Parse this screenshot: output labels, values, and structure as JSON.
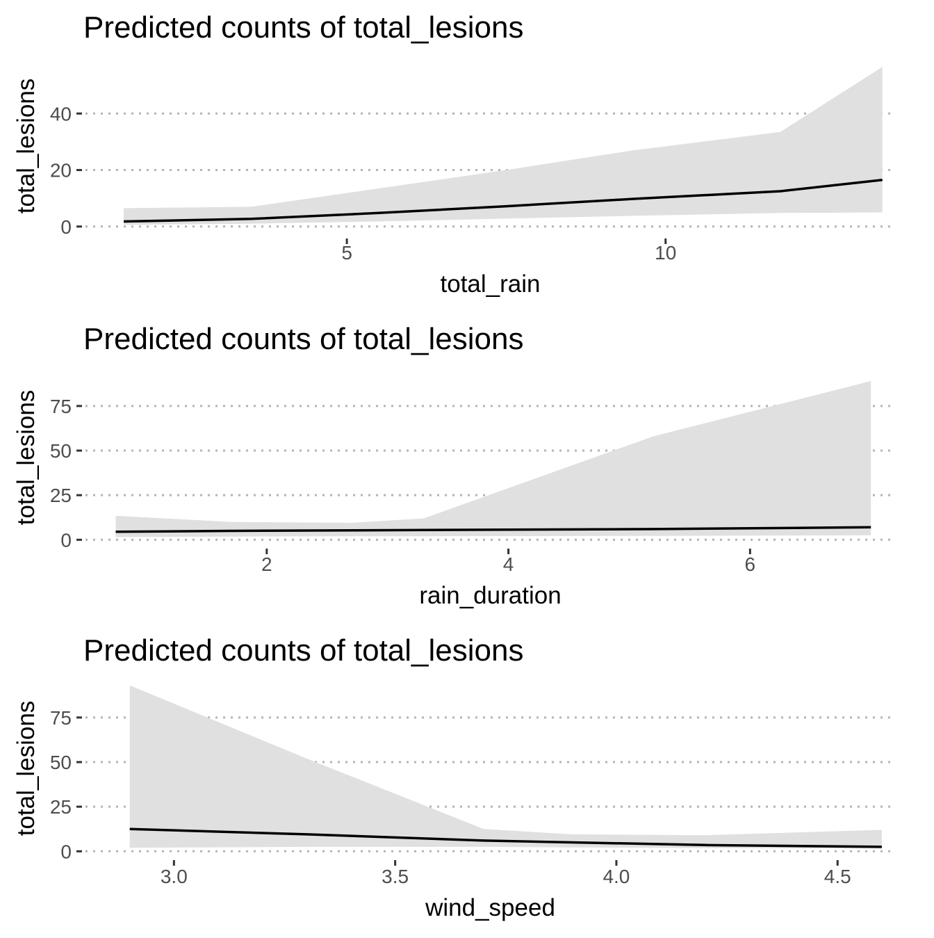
{
  "chart_data": [
    {
      "type": "area",
      "title": "Predicted counts of total_lesions",
      "xlabel": "total_rain",
      "ylabel": "total_lesions",
      "xlim": [
        0.9,
        13.6
      ],
      "ylim": [
        -3,
        60
      ],
      "x_ticks": [
        5,
        10
      ],
      "y_ticks": [
        0,
        20,
        40
      ],
      "grid": "horizontal dotted",
      "series": [
        {
          "x": [
            1.5,
            3.5,
            5.5,
            7.5,
            9.5,
            11.8,
            13.4
          ],
          "predicted": [
            1.8,
            2.7,
            4.8,
            7.2,
            9.8,
            12.5,
            16.5
          ],
          "conf_low": [
            0.6,
            1.0,
            1.8,
            2.8,
            3.8,
            4.8,
            5.0
          ],
          "conf_high": [
            6.5,
            7.0,
            13.5,
            20.0,
            27.0,
            33.5,
            56.5
          ]
        }
      ]
    },
    {
      "type": "area",
      "title": "Predicted counts of total_lesions",
      "xlabel": "rain_duration",
      "ylabel": "total_lesions",
      "xlim": [
        0.5,
        7.2
      ],
      "ylim": [
        -3,
        96
      ],
      "x_ticks": [
        2,
        4,
        6
      ],
      "y_ticks": [
        0,
        25,
        50,
        75
      ],
      "grid": "horizontal dotted",
      "series": [
        {
          "x": [
            0.75,
            1.7,
            2.7,
            3.3,
            5.2,
            7.0
          ],
          "predicted": [
            4.5,
            5.0,
            5.3,
            5.5,
            6.0,
            7.0
          ],
          "conf_low": [
            1.5,
            1.8,
            2.0,
            2.0,
            2.2,
            2.5
          ],
          "conf_high": [
            13.5,
            10.0,
            9.5,
            12.0,
            58.0,
            89.0
          ]
        }
      ]
    },
    {
      "type": "area",
      "title": "Predicted counts of total_lesions",
      "xlabel": "wind_speed",
      "ylabel": "total_lesions",
      "xlim": [
        2.8,
        4.63
      ],
      "ylim": [
        -3,
        96
      ],
      "x_ticks": [
        3.0,
        3.5,
        4.0,
        4.5
      ],
      "x_tick_labels": [
        "3.0",
        "3.5",
        "4.0",
        "4.5"
      ],
      "y_ticks": [
        0,
        25,
        50,
        75
      ],
      "grid": "horizontal dotted",
      "series": [
        {
          "x": [
            2.9,
            3.3,
            3.7,
            3.9,
            4.2,
            4.6
          ],
          "predicted": [
            12.5,
            9.5,
            6.0,
            5.0,
            3.5,
            2.5
          ],
          "conf_low": [
            2.0,
            2.5,
            2.5,
            2.2,
            1.8,
            1.5
          ],
          "conf_high": [
            93.0,
            52.0,
            12.5,
            9.5,
            9.0,
            12.0
          ]
        }
      ]
    }
  ]
}
